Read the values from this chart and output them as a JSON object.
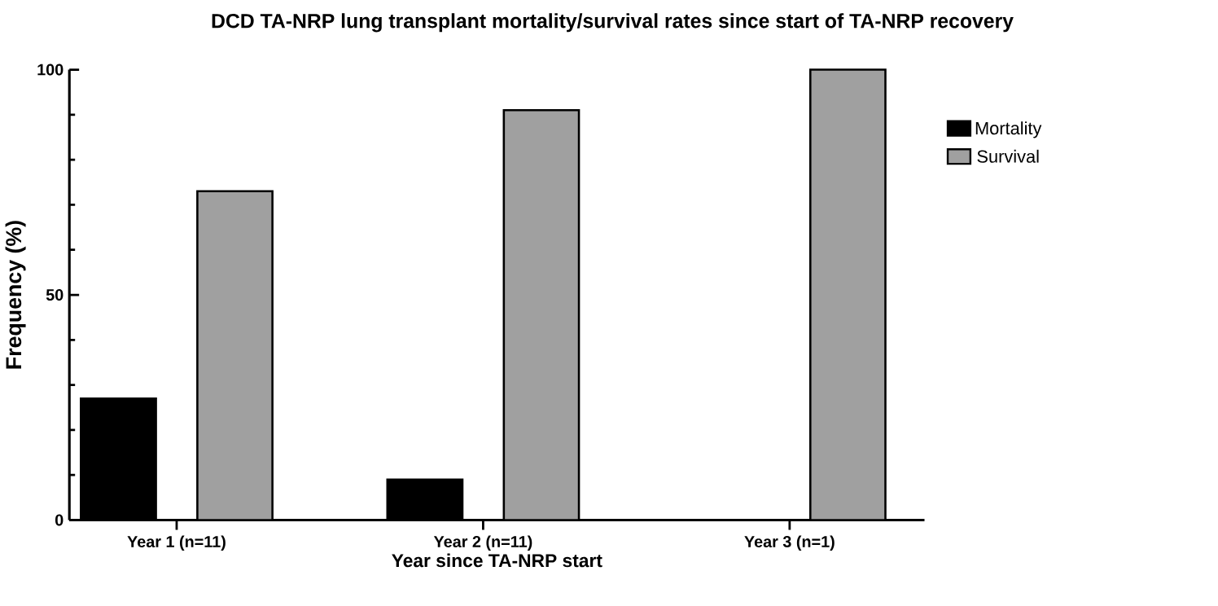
{
  "chart_data": {
    "type": "bar",
    "title": "DCD TA-NRP lung transplant mortality/survival rates since start of TA-NRP recovery",
    "xlabel": "Year since TA-NRP start",
    "ylabel": "Frequency (%)",
    "categories": [
      "Year 1 (n=11)",
      "Year 2 (n=11)",
      "Year 3 (n=1)"
    ],
    "series": [
      {
        "name": "Mortality",
        "color": "#000000",
        "values": [
          27,
          9,
          0
        ]
      },
      {
        "name": "Survival",
        "color": "#a0a0a0",
        "values": [
          73,
          91,
          100
        ]
      }
    ],
    "ylim": [
      0,
      100
    ],
    "yticks": [
      0,
      50,
      100
    ],
    "grid": false,
    "legend": "right"
  }
}
